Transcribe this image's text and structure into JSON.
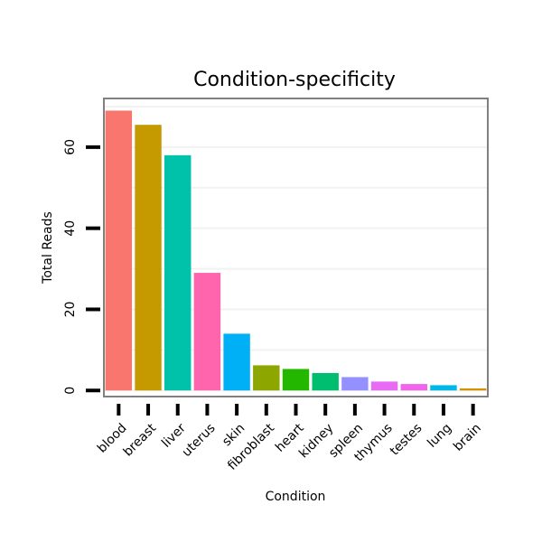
{
  "chart_data": {
    "type": "bar",
    "title": "Condition-specificity",
    "xlabel": "Condition",
    "ylabel": "Total Reads",
    "categories": [
      "blood",
      "breast",
      "liver",
      "uterus",
      "skin",
      "fibroblast",
      "heart",
      "kidney",
      "spleen",
      "thymus",
      "testes",
      "lung",
      "brain"
    ],
    "values": [
      69,
      65.5,
      58,
      29,
      14,
      6.2,
      5.3,
      4.3,
      3.3,
      2.2,
      1.6,
      1.3,
      0.5
    ],
    "colors": [
      "#F8766D",
      "#C49A00",
      "#00C1AA",
      "#FF65AC",
      "#00B0F6",
      "#8EA600",
      "#24B700",
      "#00BE70",
      "#9590FF",
      "#E76BF3",
      "#F066EA",
      "#00B8E7",
      "#D89000"
    ],
    "ylim": [
      -1.5,
      72
    ],
    "yticks": [
      0,
      20,
      40,
      60
    ],
    "grid": true,
    "legend": "none"
  }
}
